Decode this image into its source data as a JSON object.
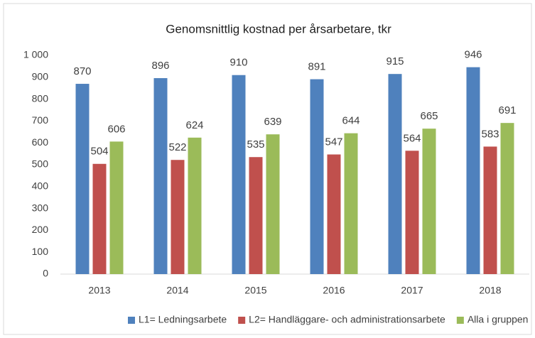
{
  "chart_data": {
    "type": "bar",
    "title": "Genomsnittlig kostnad per årsarbetare, tkr",
    "categories": [
      "2013",
      "2014",
      "2015",
      "2016",
      "2017",
      "2018"
    ],
    "series": [
      {
        "name": "L1= Ledningsarbete",
        "color": "#4f81bd",
        "values": [
          870,
          896,
          910,
          891,
          915,
          946
        ]
      },
      {
        "name": "L2= Handläggare- och administrationsarbete",
        "color": "#c0504d",
        "values": [
          504,
          522,
          535,
          547,
          564,
          583
        ]
      },
      {
        "name": "Alla i gruppen",
        "color": "#9bbb59",
        "values": [
          606,
          624,
          639,
          644,
          665,
          691
        ]
      }
    ],
    "ylim": [
      0,
      1000
    ],
    "yticks": [
      0,
      100,
      200,
      300,
      400,
      500,
      600,
      700,
      800,
      900,
      {
        "value": 1000,
        "label": "1 000"
      }
    ],
    "grid": false,
    "legend": "bottom"
  }
}
